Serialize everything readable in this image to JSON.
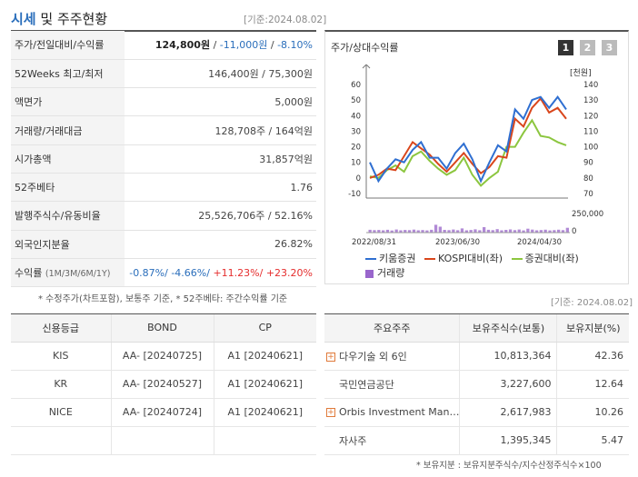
{
  "title": {
    "main": "시세",
    "sub": "및 주주현황",
    "basedate": "[기준:2024.08.02]"
  },
  "stock_rows": [
    {
      "label": "주가/전일대비/수익률"
    },
    {
      "label": "52Weeks 최고/최저",
      "value": "146,400원 / 75,300원"
    },
    {
      "label": "액면가",
      "value": "5,000원"
    },
    {
      "label": "거래량/거래대금",
      "value": "128,708주 / 164억원"
    },
    {
      "label": "시가총액",
      "value": "31,857억원"
    },
    {
      "label": "52주베타",
      "value": "1.76"
    },
    {
      "label": "발행주식수/유동비율",
      "value": "25,526,706주 / 52.16%"
    },
    {
      "label": "외국인지분율",
      "value": "26.82%"
    }
  ],
  "price": {
    "value": "124,800원",
    "sep": " / ",
    "change": "-11,000원",
    "sep2": " / ",
    "rate": "-8.10%"
  },
  "returns": {
    "label": "수익률",
    "periods": "(1M/3M/6M/1Y)",
    "m1": "-0.87%/",
    "m3": " -4.66%/",
    "m6": " +11.23%/",
    "y1": " +23.20%"
  },
  "footnote_left": "* 수정주가(차트포함), 보통주 기준, * 52주베타: 주간수익률 기준",
  "chart": {
    "title": "주가/상대수익률",
    "pages": [
      "1",
      "2",
      "3"
    ],
    "left_unit": "",
    "right_unit": "[천원]",
    "vol_max": "250,000",
    "vol_min": "0",
    "x_labels": [
      "2022/08/31",
      "2023/06/30",
      "2024/04/30"
    ],
    "legend": {
      "s1": "키움증권",
      "s2": "KOSPI대비(좌)",
      "s3": "증권대비(좌)",
      "s4": "거래량"
    }
  },
  "chart_data": {
    "type": "line",
    "x_labels": [
      "2022/08/31",
      "2023/06/30",
      "2024/04/30"
    ],
    "left_axis": {
      "ticks": [
        60,
        50,
        40,
        30,
        20,
        10,
        0,
        -10
      ],
      "range": [
        -10,
        60
      ]
    },
    "right_axis": {
      "ticks": [
        140,
        130,
        120,
        110,
        100,
        90,
        80,
        70
      ],
      "range": [
        70,
        140
      ]
    },
    "series": [
      {
        "name": "키움증권",
        "axis": "right",
        "values": [
          90,
          78,
          86,
          92,
          90,
          98,
          103,
          93,
          93,
          86,
          96,
          102,
          92,
          78,
          90,
          101,
          97,
          124,
          118,
          130,
          132,
          125,
          132,
          124
        ]
      },
      {
        "name": "KOSPI대비(좌)",
        "axis": "left",
        "values": [
          0,
          2,
          6,
          5,
          14,
          23,
          19,
          15,
          9,
          4,
          10,
          16,
          9,
          3,
          7,
          14,
          13,
          38,
          33,
          45,
          51,
          42,
          45,
          38
        ]
      },
      {
        "name": "증권대비(좌)",
        "axis": "left",
        "values": [
          1,
          0,
          5,
          8,
          4,
          14,
          17,
          11,
          6,
          2,
          5,
          13,
          2,
          -5,
          0,
          4,
          20,
          20,
          29,
          37,
          27,
          26,
          23,
          21
        ]
      }
    ],
    "volume": {
      "name": "거래량",
      "range": [
        0,
        250000
      ],
      "values": [
        32000,
        28000,
        30000,
        26000,
        32000,
        24000,
        35000,
        26000,
        30000,
        28000,
        34000,
        26000,
        29000,
        25000,
        32000,
        90000,
        68000,
        31000,
        28000,
        35000,
        27000,
        48000,
        26000,
        30000,
        38000,
        27000,
        62000,
        32000,
        28000,
        40000,
        26000,
        31000,
        36000,
        28000,
        35000,
        25000,
        45000,
        34000,
        26000,
        29000,
        33000,
        25000,
        28000,
        33000,
        28000,
        55000
      ]
    },
    "title": "주가/상대수익률"
  },
  "footnote_right": "[기준: 2024.08.02]",
  "credit": {
    "headers": [
      "신용등급",
      "BOND",
      "CP"
    ],
    "rows": [
      {
        "agency": "KIS",
        "bond": "AA-  [20240725]",
        "cp": "A1  [20240621]"
      },
      {
        "agency": "KR",
        "bond": "AA-  [20240527]",
        "cp": "A1  [20240621]"
      },
      {
        "agency": "NICE",
        "bond": "AA-  [20240724]",
        "cp": "A1  [20240621]"
      }
    ]
  },
  "holders": {
    "headers": [
      "주요주주",
      "보유주식수(보통)",
      "보유지분(%)"
    ],
    "rows": [
      {
        "name": "다우기술 외 6인",
        "shares": "10,813,364",
        "pct": "42.36"
      },
      {
        "name": "국민연금공단",
        "shares": "3,227,600",
        "pct": "12.64"
      },
      {
        "name": "Orbis Investment Man…",
        "shares": "2,617,983",
        "pct": "10.26"
      },
      {
        "name": "자사주",
        "shares": "1,395,345",
        "pct": "5.47"
      }
    ],
    "footnote": "* 보유지분 : 보유지분주식수/지수산정주식수×100"
  },
  "colors": {
    "accent": "#2a6ebb",
    "price_line": "#2f6fd1",
    "kospi_line": "#d9461c",
    "sector_line": "#8cc63f",
    "volume": "#9966cc"
  }
}
